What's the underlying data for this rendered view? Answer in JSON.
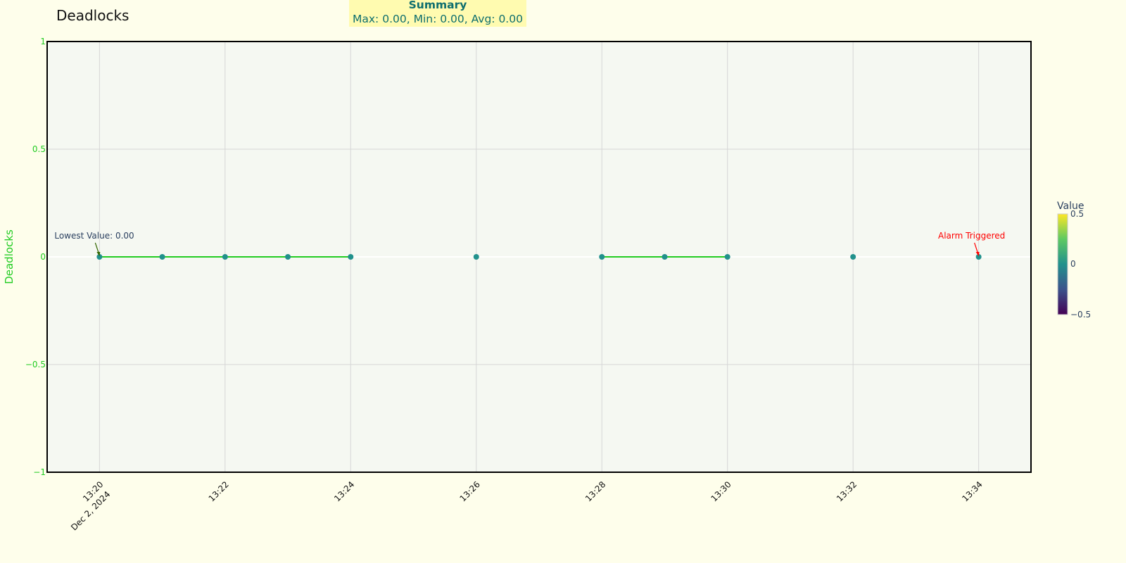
{
  "title": "Deadlocks",
  "summary": {
    "heading": "Summary",
    "text": "Max: 0.00, Min: 0.00, Avg: 0.00"
  },
  "chart_data": {
    "type": "line",
    "title": "Deadlocks",
    "xlabel": "",
    "ylabel": "Deadlocks",
    "x": [
      "13:20",
      "13:21",
      "13:22",
      "13:23",
      "13:24",
      "13:25",
      "13:26",
      "13:27",
      "13:28",
      "13:29",
      "13:30",
      "13:31",
      "13:32",
      "13:33",
      "13:34"
    ],
    "values": [
      0,
      0,
      0,
      0,
      0,
      null,
      0,
      null,
      0,
      0,
      0,
      null,
      0,
      null,
      0
    ],
    "xlim": [
      "13:19:10",
      "13:34:50"
    ],
    "ylim": [
      -1,
      1
    ],
    "x_ticks": [
      "13:20",
      "13:22",
      "13:24",
      "13:26",
      "13:28",
      "13:30",
      "13:32",
      "13:34"
    ],
    "x_tick_date": "Dec 2, 2024",
    "y_ticks": [
      {
        "value": 1,
        "label": "1"
      },
      {
        "value": 0.5,
        "label": "0.5"
      },
      {
        "value": 0,
        "label": "0"
      },
      {
        "value": -0.5,
        "label": "−0.5"
      },
      {
        "value": -1,
        "label": "−1"
      }
    ],
    "grid": true,
    "line_color": "#22cc22",
    "marker_color": "#21918c",
    "axis_label_color": "#22cc22",
    "annotations": [
      {
        "x": "13:20",
        "y": 0,
        "text": "Lowest Value: 0.00",
        "color": "#2a3f5f",
        "arrow_color": "#336600"
      },
      {
        "x": "13:34",
        "y": 0,
        "text": "Alarm Triggered",
        "color": "#ff0000",
        "arrow_color": "#ff0000"
      }
    ],
    "colorbar": {
      "title": "Value",
      "colorscale": "viridis",
      "range": [
        -0.5,
        0.5
      ],
      "ticks": [
        "0.5",
        "0",
        "−0.5"
      ]
    }
  }
}
